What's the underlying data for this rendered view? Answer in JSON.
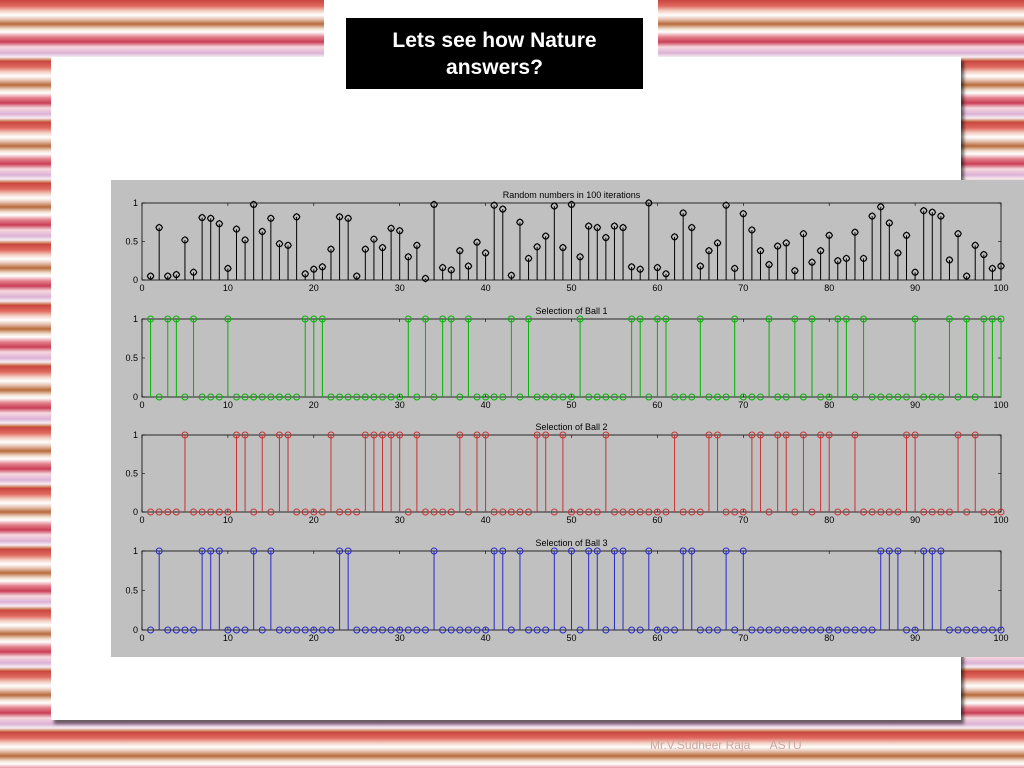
{
  "slide": {
    "title": "Lets see how Nature answers?",
    "footer": "Mr.V.Sudheer Raja      ASTU"
  },
  "colors": {
    "panel_bg": "#ffffff",
    "figure_bg": "#c0c0c0",
    "title_bg": "#000000",
    "title_fg": "#ffffff"
  },
  "chart_data": [
    {
      "type": "stem",
      "title": "Random numbers in 100 iterations",
      "color": "#000000",
      "marker": "diamond-circle",
      "xlim": [
        0,
        100
      ],
      "ylim": [
        0,
        1
      ],
      "xticks": [
        "0",
        "10",
        "20",
        "30",
        "40",
        "50",
        "60",
        "70",
        "80",
        "90",
        "100"
      ],
      "yticks": [
        "0",
        "0.5",
        "1"
      ],
      "x": [
        1,
        2,
        3,
        4,
        5,
        6,
        7,
        8,
        9,
        10,
        11,
        12,
        13,
        14,
        15,
        16,
        17,
        18,
        19,
        20,
        21,
        22,
        23,
        24,
        25,
        26,
        27,
        28,
        29,
        30,
        31,
        32,
        33,
        34,
        35,
        36,
        37,
        38,
        39,
        40,
        41,
        42,
        43,
        44,
        45,
        46,
        47,
        48,
        49,
        50,
        51,
        52,
        53,
        54,
        55,
        56,
        57,
        58,
        59,
        60,
        61,
        62,
        63,
        64,
        65,
        66,
        67,
        68,
        69,
        70,
        71,
        72,
        73,
        74,
        75,
        76,
        77,
        78,
        79,
        80,
        81,
        82,
        83,
        84,
        85,
        86,
        87,
        88,
        89,
        90,
        91,
        92,
        93,
        94,
        95,
        96,
        97,
        98,
        99,
        100
      ],
      "y": [
        0.05,
        0.68,
        0.05,
        0.07,
        0.52,
        0.1,
        0.81,
        0.8,
        0.73,
        0.15,
        0.66,
        0.52,
        0.98,
        0.63,
        0.8,
        0.47,
        0.45,
        0.82,
        0.08,
        0.14,
        0.17,
        0.4,
        0.82,
        0.8,
        0.05,
        0.4,
        0.53,
        0.42,
        0.67,
        0.64,
        0.3,
        0.45,
        0.02,
        0.98,
        0.16,
        0.13,
        0.38,
        0.18,
        0.49,
        0.35,
        0.97,
        0.92,
        0.06,
        0.75,
        0.28,
        0.43,
        0.57,
        0.96,
        0.42,
        0.98,
        0.3,
        0.7,
        0.68,
        0.55,
        0.7,
        0.68,
        0.17,
        0.14,
        1.0,
        0.16,
        0.08,
        0.56,
        0.87,
        0.68,
        0.18,
        0.38,
        0.48,
        0.97,
        0.15,
        0.86,
        0.65,
        0.38,
        0.2,
        0.44,
        0.48,
        0.12,
        0.6,
        0.23,
        0.38,
        0.58,
        0.25,
        0.28,
        0.62,
        0.28,
        0.83,
        0.95,
        0.74,
        0.35,
        0.58,
        0.1,
        0.9,
        0.88,
        0.83,
        0.26,
        0.6,
        0.05,
        0.45,
        0.33,
        0.15,
        0.18
      ]
    },
    {
      "type": "stem",
      "title": "Selection of Ball 1",
      "color": "#00b400",
      "marker": "circle",
      "xlim": [
        0,
        100
      ],
      "ylim": [
        0,
        1
      ],
      "xticks": [
        "0",
        "10",
        "20",
        "30",
        "40",
        "50",
        "60",
        "70",
        "80",
        "90",
        "100"
      ],
      "yticks": [
        "0",
        "0.5",
        "1"
      ],
      "x": [
        1,
        2,
        3,
        4,
        5,
        6,
        7,
        8,
        9,
        10,
        11,
        12,
        13,
        14,
        15,
        16,
        17,
        18,
        19,
        20,
        21,
        22,
        23,
        24,
        25,
        26,
        27,
        28,
        29,
        30,
        31,
        32,
        33,
        34,
        35,
        36,
        37,
        38,
        39,
        40,
        41,
        42,
        43,
        44,
        45,
        46,
        47,
        48,
        49,
        50,
        51,
        52,
        53,
        54,
        55,
        56,
        57,
        58,
        59,
        60,
        61,
        62,
        63,
        64,
        65,
        66,
        67,
        68,
        69,
        70,
        71,
        72,
        73,
        74,
        75,
        76,
        77,
        78,
        79,
        80,
        81,
        82,
        83,
        84,
        85,
        86,
        87,
        88,
        89,
        90,
        91,
        92,
        93,
        94,
        95,
        96,
        97,
        98,
        99,
        100
      ],
      "y": [
        1,
        0,
        1,
        1,
        0,
        1,
        0,
        0,
        0,
        1,
        0,
        0,
        0,
        0,
        0,
        0,
        0,
        0,
        1,
        1,
        1,
        0,
        0,
        0,
        0,
        0,
        0,
        0,
        0,
        0,
        1,
        0,
        1,
        0,
        1,
        1,
        0,
        1,
        0,
        0,
        0,
        0,
        1,
        0,
        1,
        0,
        0,
        0,
        0,
        0,
        1,
        0,
        0,
        0,
        0,
        0,
        1,
        1,
        0,
        1,
        1,
        0,
        0,
        0,
        1,
        0,
        0,
        0,
        1,
        0,
        0,
        0,
        1,
        0,
        0,
        1,
        0,
        1,
        0,
        0,
        1,
        1,
        0,
        1,
        0,
        0,
        0,
        0,
        0,
        1,
        0,
        0,
        0,
        1,
        0,
        1,
        0,
        1,
        1,
        1
      ]
    },
    {
      "type": "stem",
      "title": "Selection of Ball 2",
      "color": "#c83232",
      "marker": "circle",
      "xlim": [
        0,
        100
      ],
      "ylim": [
        0,
        1
      ],
      "xticks": [
        "0",
        "10",
        "20",
        "30",
        "40",
        "50",
        "60",
        "70",
        "80",
        "90",
        "100"
      ],
      "yticks": [
        "0",
        "0.5",
        "1"
      ],
      "x": [
        1,
        2,
        3,
        4,
        5,
        6,
        7,
        8,
        9,
        10,
        11,
        12,
        13,
        14,
        15,
        16,
        17,
        18,
        19,
        20,
        21,
        22,
        23,
        24,
        25,
        26,
        27,
        28,
        29,
        30,
        31,
        32,
        33,
        34,
        35,
        36,
        37,
        38,
        39,
        40,
        41,
        42,
        43,
        44,
        45,
        46,
        47,
        48,
        49,
        50,
        51,
        52,
        53,
        54,
        55,
        56,
        57,
        58,
        59,
        60,
        61,
        62,
        63,
        64,
        65,
        66,
        67,
        68,
        69,
        70,
        71,
        72,
        73,
        74,
        75,
        76,
        77,
        78,
        79,
        80,
        81,
        82,
        83,
        84,
        85,
        86,
        87,
        88,
        89,
        90,
        91,
        92,
        93,
        94,
        95,
        96,
        97,
        98,
        99,
        100
      ],
      "y": [
        0,
        0,
        0,
        0,
        1,
        0,
        0,
        0,
        0,
        0,
        1,
        1,
        0,
        1,
        0,
        1,
        1,
        0,
        0,
        0,
        0,
        1,
        0,
        0,
        0,
        1,
        1,
        1,
        1,
        1,
        0,
        1,
        0,
        0,
        0,
        0,
        1,
        0,
        1,
        1,
        0,
        0,
        0,
        0,
        0,
        1,
        1,
        0,
        1,
        0,
        0,
        0,
        0,
        1,
        0,
        0,
        0,
        0,
        0,
        0,
        0,
        1,
        0,
        0,
        0,
        1,
        1,
        0,
        0,
        0,
        1,
        1,
        0,
        1,
        1,
        0,
        1,
        0,
        1,
        1,
        0,
        0,
        1,
        0,
        0,
        0,
        0,
        0,
        1,
        1,
        0,
        0,
        0,
        0,
        1,
        0,
        1,
        0,
        0,
        0
      ]
    },
    {
      "type": "stem",
      "title": "Selection of Ball 3",
      "color": "#2828c8",
      "marker": "circle",
      "xlim": [
        0,
        100
      ],
      "ylim": [
        0,
        1
      ],
      "xticks": [
        "0",
        "10",
        "20",
        "30",
        "40",
        "50",
        "60",
        "70",
        "80",
        "90",
        "100"
      ],
      "yticks": [
        "0",
        "0.5",
        "1"
      ],
      "x": [
        1,
        2,
        3,
        4,
        5,
        6,
        7,
        8,
        9,
        10,
        11,
        12,
        13,
        14,
        15,
        16,
        17,
        18,
        19,
        20,
        21,
        22,
        23,
        24,
        25,
        26,
        27,
        28,
        29,
        30,
        31,
        32,
        33,
        34,
        35,
        36,
        37,
        38,
        39,
        40,
        41,
        42,
        43,
        44,
        45,
        46,
        47,
        48,
        49,
        50,
        51,
        52,
        53,
        54,
        55,
        56,
        57,
        58,
        59,
        60,
        61,
        62,
        63,
        64,
        65,
        66,
        67,
        68,
        69,
        70,
        71,
        72,
        73,
        74,
        75,
        76,
        77,
        78,
        79,
        80,
        81,
        82,
        83,
        84,
        85,
        86,
        87,
        88,
        89,
        90,
        91,
        92,
        93,
        94,
        95,
        96,
        97,
        98,
        99,
        100
      ],
      "y": [
        0,
        1,
        0,
        0,
        0,
        0,
        1,
        1,
        1,
        0,
        0,
        0,
        1,
        0,
        1,
        0,
        0,
        0,
        0,
        0,
        0,
        0,
        1,
        1,
        0,
        0,
        0,
        0,
        0,
        0,
        0,
        0,
        0,
        1,
        0,
        0,
        0,
        0,
        0,
        0,
        1,
        1,
        0,
        1,
        0,
        0,
        0,
        1,
        0,
        1,
        0,
        1,
        1,
        0,
        1,
        1,
        0,
        0,
        1,
        0,
        0,
        0,
        1,
        1,
        0,
        0,
        0,
        1,
        0,
        1,
        0,
        0,
        0,
        0,
        0,
        0,
        0,
        0,
        0,
        0,
        0,
        0,
        0,
        0,
        0,
        1,
        1,
        1,
        0,
        0,
        1,
        1,
        1,
        0,
        0,
        0,
        0,
        0,
        0,
        0
      ]
    }
  ]
}
